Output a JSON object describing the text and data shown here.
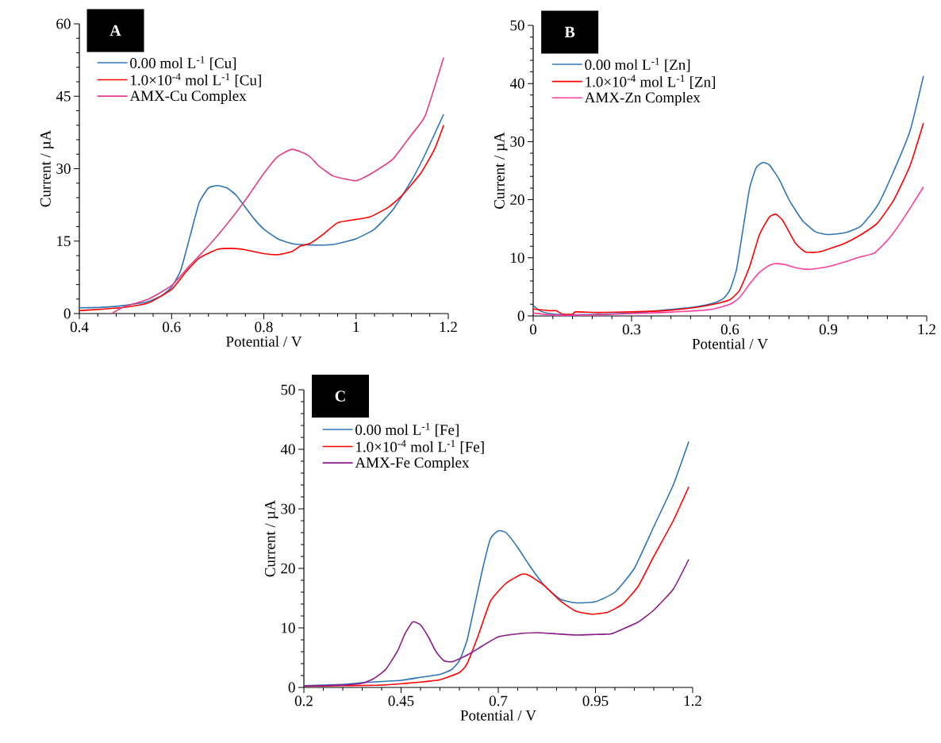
{
  "chart_data": [
    {
      "type": "line",
      "title": "A",
      "xlabel": "Potential / V",
      "ylabel": "Current / µA",
      "xlim": [
        0.4,
        1.2
      ],
      "ylim": [
        0,
        60
      ],
      "xticks": [
        0.4,
        0.6,
        0.8,
        1,
        1.2
      ],
      "yticks": [
        0,
        15,
        30,
        45,
        60
      ],
      "legend": "top left",
      "series": [
        {
          "name": "0.00 mol L$^{-1}$ [Cu]",
          "color": "#2e75b6",
          "x": [
            0.4,
            0.45,
            0.5,
            0.55,
            0.58,
            0.6,
            0.62,
            0.64,
            0.66,
            0.68,
            0.7,
            0.72,
            0.74,
            0.76,
            0.78,
            0.8,
            0.83,
            0.86,
            0.9,
            0.95,
            1.0,
            1.04,
            1.08,
            1.12,
            1.15,
            1.19
          ],
          "values": [
            1.2,
            1.3,
            1.7,
            2.5,
            3.8,
            5.5,
            9,
            16,
            23,
            26,
            26.5,
            26,
            24.5,
            22,
            19.5,
            17.5,
            15.5,
            14.5,
            14.2,
            14.3,
            15.5,
            17.5,
            21.5,
            27.5,
            33,
            41.3
          ]
        },
        {
          "name": "1.0×10$^{-4}$ mol L$^{-1}$ [Cu]",
          "color": "#ff0000",
          "x": [
            0.4,
            0.45,
            0.5,
            0.55,
            0.6,
            0.63,
            0.66,
            0.7,
            0.73,
            0.76,
            0.8,
            0.83,
            0.86,
            0.88,
            0.9,
            0.93,
            0.96,
            1.0,
            1.03,
            1.07,
            1.1,
            1.14,
            1.17,
            1.19
          ],
          "values": [
            0.6,
            0.9,
            1.3,
            2.2,
            5,
            8.5,
            11.5,
            13.3,
            13.5,
            13.2,
            12.4,
            12.2,
            12.8,
            14,
            14.5,
            16.5,
            18.8,
            19.5,
            20,
            22,
            24.5,
            29,
            34,
            39
          ]
        },
        {
          "name": "AMX-Cu Complex",
          "color": "#e0408a",
          "x": [
            0.47,
            0.5,
            0.55,
            0.6,
            0.64,
            0.68,
            0.72,
            0.76,
            0.8,
            0.83,
            0.86,
            0.88,
            0.9,
            0.92,
            0.95,
            0.98,
            1.0,
            1.02,
            1.05,
            1.08,
            1.12,
            1.15,
            1.19
          ],
          "values": [
            0,
            1.5,
            3,
            5.8,
            10,
            14,
            18.5,
            23.5,
            29,
            32.5,
            34,
            33.5,
            32.5,
            30.5,
            28.5,
            27.8,
            27.5,
            28.3,
            30,
            32,
            37,
            41,
            53
          ]
        }
      ]
    },
    {
      "type": "line",
      "title": "B",
      "xlabel": "Potential / V",
      "ylabel": "Current / µA",
      "xlim": [
        0,
        1.2
      ],
      "ylim": [
        0,
        50
      ],
      "xticks": [
        0,
        0.3,
        0.6,
        0.9,
        1.2
      ],
      "yticks": [
        0,
        10,
        20,
        30,
        40,
        50
      ],
      "legend": "top left",
      "series": [
        {
          "name": "0.00 mol L$^{-1}$ [Zn]",
          "color": "#2e75b6",
          "x": [
            0,
            0.02,
            0.05,
            0.1,
            0.2,
            0.3,
            0.4,
            0.5,
            0.55,
            0.58,
            0.6,
            0.62,
            0.64,
            0.66,
            0.68,
            0.7,
            0.72,
            0.75,
            0.78,
            0.82,
            0.86,
            0.9,
            0.95,
            1.0,
            1.05,
            1.1,
            1.15,
            1.19
          ],
          "values": [
            1.8,
            0.9,
            0.4,
            0.2,
            0.3,
            0.5,
            1,
            1.6,
            2.2,
            3,
            4.5,
            8,
            15,
            22,
            25.5,
            26.4,
            26,
            23.5,
            20,
            16.5,
            14.5,
            14,
            14.3,
            15.5,
            19,
            25,
            32,
            41.3
          ]
        },
        {
          "name": "1.0×10$^{-4}$ mol L$^{-1}$ [Zn]",
          "color": "#ff0000",
          "x": [
            0,
            0.05,
            0.07,
            0.09,
            0.12,
            0.13,
            0.2,
            0.3,
            0.4,
            0.5,
            0.55,
            0.6,
            0.63,
            0.66,
            0.69,
            0.72,
            0.74,
            0.76,
            0.78,
            0.8,
            0.83,
            0.87,
            0.9,
            0.95,
            1.0,
            1.05,
            1.1,
            1.15,
            1.19
          ],
          "values": [
            1.2,
            0.9,
            0.9,
            0.3,
            0.3,
            0.7,
            0.6,
            0.7,
            0.9,
            1.5,
            2,
            2.8,
            4.5,
            8.5,
            14,
            17,
            17.5,
            16.5,
            14.5,
            12.5,
            11,
            11,
            11.5,
            12.5,
            14,
            16,
            20,
            26,
            33.2
          ]
        },
        {
          "name": "AMX-Zn  Complex",
          "color": "#ff3fa0",
          "x": [
            0,
            0.05,
            0.1,
            0.2,
            0.3,
            0.4,
            0.5,
            0.55,
            0.6,
            0.63,
            0.66,
            0.69,
            0.72,
            0.74,
            0.77,
            0.8,
            0.84,
            0.87,
            0.9,
            0.95,
            1.0,
            1.04,
            1.08,
            1.12,
            1.16,
            1.19
          ],
          "values": [
            0.5,
            0.2,
            0.1,
            0.2,
            0.4,
            0.6,
            0.9,
            1.2,
            2,
            3.2,
            5.5,
            7.5,
            8.7,
            9,
            8.8,
            8.3,
            8,
            8.2,
            8.5,
            9.3,
            10.2,
            10.8,
            13,
            16,
            19.5,
            22.2
          ]
        }
      ]
    },
    {
      "type": "line",
      "title": "C",
      "xlabel": "Potential / V",
      "ylabel": "Current / µA",
      "xlim": [
        0.2,
        1.2
      ],
      "ylim": [
        0,
        50
      ],
      "xticks": [
        0.2,
        0.45,
        0.7,
        0.95,
        1.2
      ],
      "yticks": [
        0,
        10,
        20,
        30,
        40,
        50
      ],
      "legend": "top left",
      "series": [
        {
          "name": "0.00 mol L$^{-1}$ [Fe]",
          "color": "#2e75b6",
          "x": [
            0.2,
            0.3,
            0.35,
            0.4,
            0.45,
            0.5,
            0.55,
            0.58,
            0.6,
            0.62,
            0.64,
            0.66,
            0.68,
            0.7,
            0.72,
            0.75,
            0.78,
            0.82,
            0.86,
            0.9,
            0.95,
            1.0,
            1.05,
            1.1,
            1.15,
            1.19
          ],
          "values": [
            0.3,
            0.5,
            0.8,
            1,
            1.2,
            1.7,
            2.2,
            3,
            4.5,
            8,
            14,
            20,
            25,
            26.3,
            26,
            23.5,
            20.5,
            17,
            14.8,
            14.2,
            14.4,
            16,
            20,
            27,
            34,
            41.3
          ]
        },
        {
          "name": "1.0×10$^{-4}$ mol L$^{-1}$ [Fe]",
          "color": "#ff0000",
          "x": [
            0.2,
            0.3,
            0.4,
            0.5,
            0.55,
            0.6,
            0.62,
            0.65,
            0.68,
            0.72,
            0.76,
            0.78,
            0.82,
            0.86,
            0.9,
            0.94,
            0.98,
            1.02,
            1.06,
            1.1,
            1.15,
            1.19
          ],
          "values": [
            0.2,
            0.3,
            0.4,
            0.9,
            1.3,
            2.5,
            4,
            9,
            14.5,
            17.5,
            19,
            18.8,
            17,
            14.5,
            12.8,
            12.3,
            12.6,
            14,
            17,
            22,
            28,
            33.7
          ]
        },
        {
          "name": "AMX-Fe Complex",
          "color": "#8b1a8b",
          "x": [
            0.2,
            0.3,
            0.35,
            0.38,
            0.41,
            0.44,
            0.46,
            0.48,
            0.5,
            0.52,
            0.54,
            0.56,
            0.58,
            0.6,
            0.63,
            0.66,
            0.7,
            0.75,
            0.8,
            0.85,
            0.9,
            0.95,
            0.99,
            1.02,
            1.06,
            1.1,
            1.15,
            1.19
          ],
          "values": [
            0.2,
            0.4,
            0.7,
            1.5,
            3,
            6,
            9,
            11,
            10.5,
            8.5,
            6,
            4.5,
            4.3,
            4.8,
            5.8,
            7,
            8.5,
            9,
            9.2,
            9,
            8.8,
            8.9,
            9,
            9.8,
            11,
            13,
            16.5,
            21.5
          ]
        }
      ]
    }
  ]
}
